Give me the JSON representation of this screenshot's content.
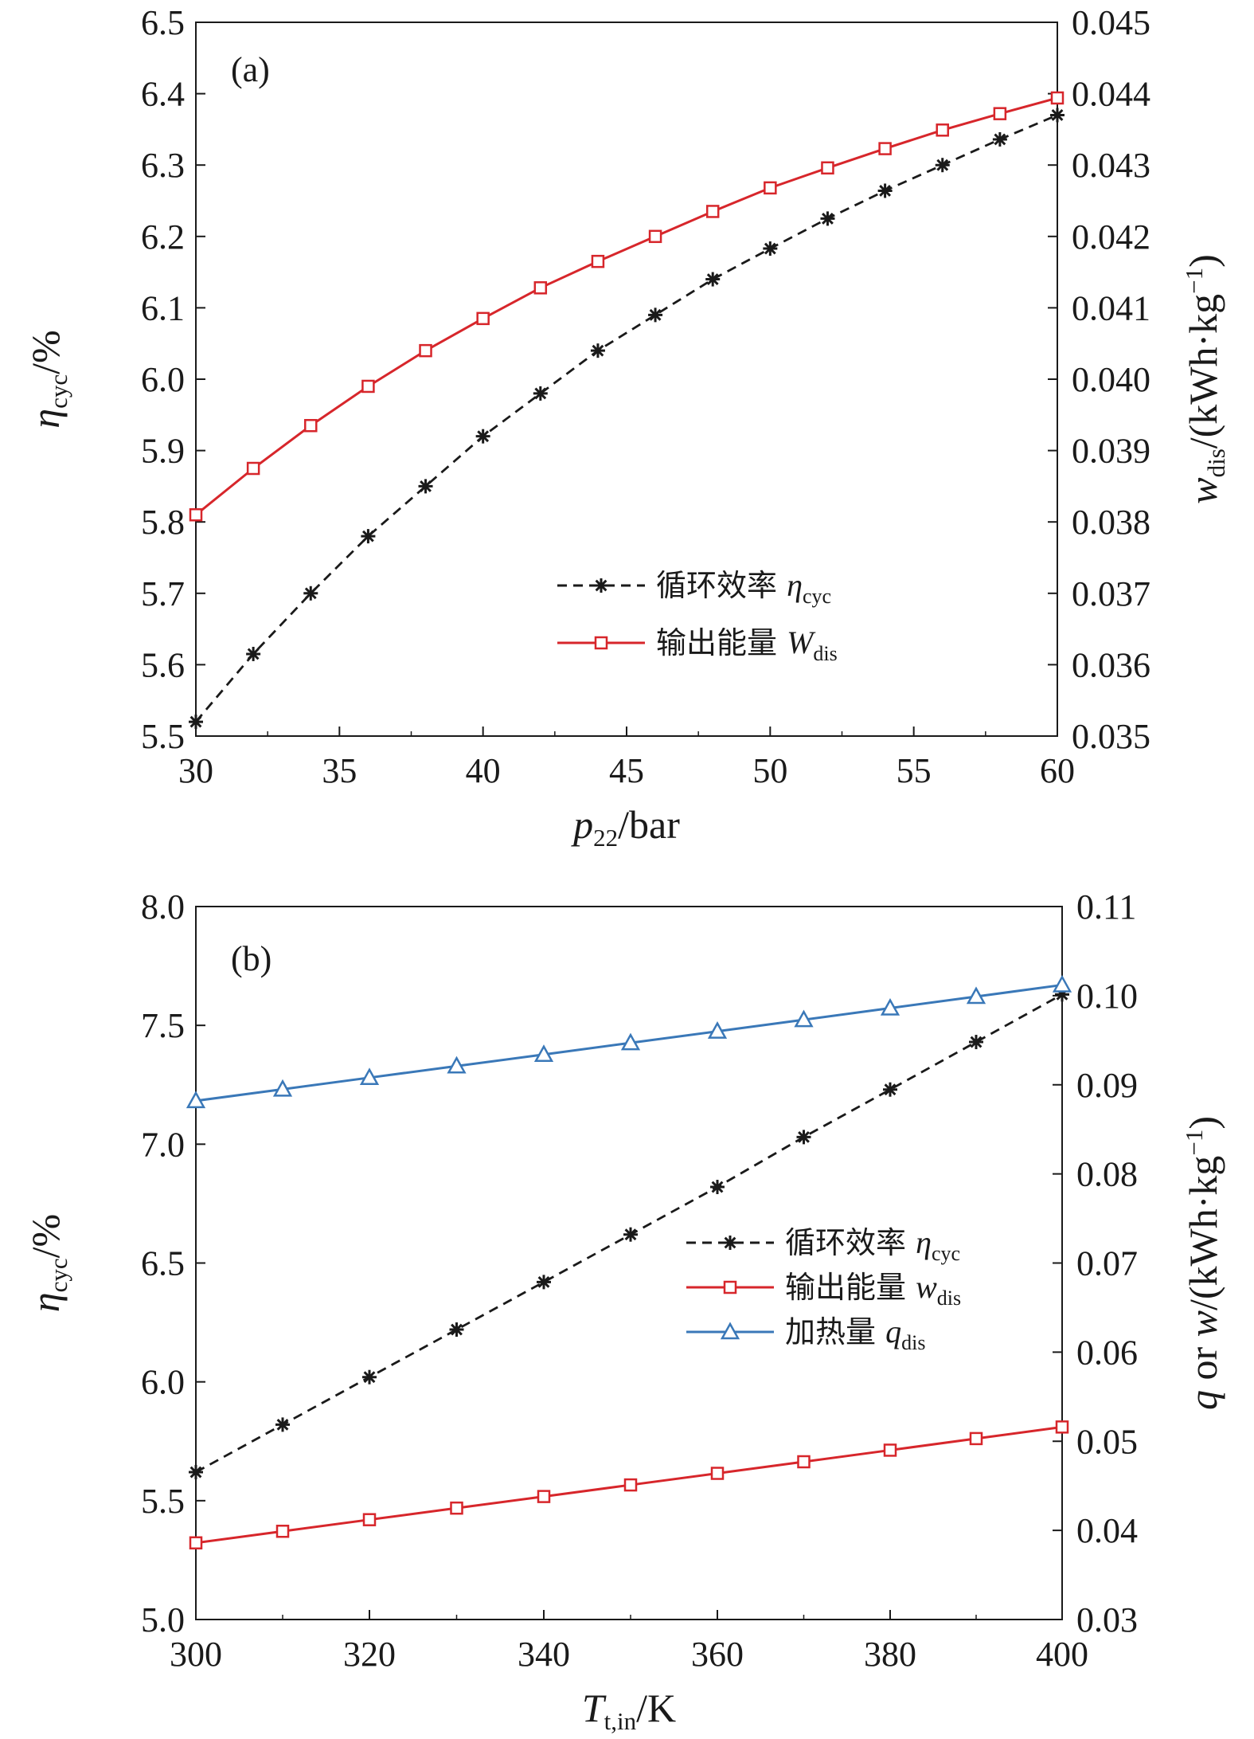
{
  "chart_data": [
    {
      "type": "line",
      "panel_label": "(a)",
      "x_label": {
        "symbol": "p",
        "sub": "22",
        "unit": "/bar"
      },
      "y_left_label": {
        "symbol": "η",
        "sub": "cyc",
        "unit": "/%"
      },
      "y_right_label": {
        "symbol": "w",
        "sub": "dis",
        "unit": "/(kWh·kg",
        "sup": "−1",
        "tail": ")"
      },
      "x_range": [
        30,
        60
      ],
      "y_left_range": [
        5.5,
        6.5
      ],
      "y_right_range": [
        0.035,
        0.045
      ],
      "x_ticks": [
        30,
        35,
        40,
        45,
        50,
        55,
        60
      ],
      "y_left_ticks": [
        "5.5",
        "5.6",
        "5.7",
        "5.8",
        "5.9",
        "6.0",
        "6.1",
        "6.2",
        "6.3",
        "6.4",
        "6.5"
      ],
      "y_right_ticks": [
        "0.035",
        "0.036",
        "0.037",
        "0.038",
        "0.039",
        "0.040",
        "0.041",
        "0.042",
        "0.043",
        "0.044",
        "0.045"
      ],
      "x_values": [
        30,
        32,
        34,
        36,
        38,
        40,
        42,
        44,
        46,
        48,
        50,
        52,
        54,
        56,
        58,
        60
      ],
      "legend_position": "bottom-right",
      "series": [
        {
          "name": "循环效率",
          "symbol": "η",
          "sub": "cyc",
          "axis": "left",
          "color": "#1a1a1a",
          "dash": true,
          "marker": "asterisk",
          "values": [
            5.52,
            5.615,
            5.7,
            5.78,
            5.85,
            5.92,
            5.98,
            6.04,
            6.09,
            6.14,
            6.183,
            6.225,
            6.264,
            6.3,
            6.336,
            6.37
          ]
        },
        {
          "name": "输出能量",
          "symbol": "W",
          "sub": "dis",
          "axis": "right",
          "color": "#d7262b",
          "dash": false,
          "marker": "square",
          "values": [
            0.0381,
            0.03875,
            0.03935,
            0.0399,
            0.0404,
            0.04085,
            0.04128,
            0.04165,
            0.042,
            0.04235,
            0.04268,
            0.04296,
            0.04323,
            0.04349,
            0.04372,
            0.04394
          ]
        }
      ]
    },
    {
      "type": "line",
      "panel_label": "(b)",
      "x_label": {
        "symbol": "T",
        "sub": "t,in",
        "unit": "/K"
      },
      "y_left_label": {
        "symbol": "η",
        "sub": "cyc",
        "unit": "/%"
      },
      "y_right_label": {
        "symbol": "q",
        "mid": " or ",
        "symbol2": "w",
        "unit": "/(kWh·kg",
        "sup": "−1",
        "tail": ")"
      },
      "x_range": [
        300,
        400
      ],
      "y_left_range": [
        5.0,
        8.0
      ],
      "y_right_range": [
        0.03,
        0.11
      ],
      "x_ticks": [
        300,
        320,
        340,
        360,
        380,
        400
      ],
      "y_left_ticks": [
        "5.0",
        "5.5",
        "6.0",
        "6.5",
        "7.0",
        "7.5",
        "8.0"
      ],
      "y_right_ticks": [
        "0.03",
        "0.04",
        "0.05",
        "0.06",
        "0.07",
        "0.08",
        "0.09",
        "0.10",
        "0.11"
      ],
      "x_values": [
        300,
        310,
        320,
        330,
        340,
        350,
        360,
        370,
        380,
        390,
        400
      ],
      "legend_position": "middle-right",
      "series": [
        {
          "name": "循环效率",
          "symbol": "η",
          "sub": "cyc",
          "axis": "left",
          "color": "#1a1a1a",
          "dash": true,
          "marker": "asterisk",
          "values": [
            5.62,
            5.82,
            6.02,
            6.22,
            6.42,
            6.62,
            6.82,
            7.03,
            7.23,
            7.43,
            7.63
          ]
        },
        {
          "name": "输出能量",
          "symbol": "w",
          "sub": "dis",
          "axis": "right",
          "color": "#d7262b",
          "dash": false,
          "marker": "square",
          "values": [
            0.0386,
            0.0399,
            0.0412,
            0.0425,
            0.0438,
            0.0451,
            0.0464,
            0.0477,
            0.049,
            0.0503,
            0.0516
          ]
        },
        {
          "name": "加热量",
          "symbol": "q",
          "sub": "dis",
          "axis": "right",
          "color": "#3a78b8",
          "dash": false,
          "marker": "triangle",
          "values": [
            0.0882,
            0.0895,
            0.0908,
            0.0921,
            0.0934,
            0.0947,
            0.096,
            0.0973,
            0.0986,
            0.0999,
            0.1012
          ]
        }
      ]
    }
  ]
}
